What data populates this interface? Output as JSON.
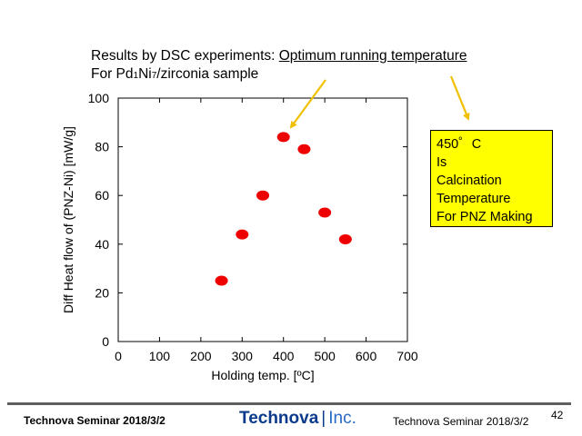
{
  "title": {
    "line1_prefix": "Results by DSC experiments: ",
    "line1_underlined": "Optimum running temperature",
    "line2_a": "For Pd",
    "line2_sub1": "1",
    "line2_b": "Ni",
    "line2_sub2": "7",
    "line2_c": "/zirconia sample"
  },
  "note": {
    "lines": [
      "450゜C",
      "Is",
      "Calcination",
      "Temperature",
      "For PNZ  Making"
    ],
    "color": "#ffff00"
  },
  "footer": {
    "left": "Technova Seminar 2018/3/2",
    "logo_brand": "Technova",
    "logo_sep": "|",
    "logo_inc": "Inc.",
    "right": "Technova Seminar 2018/3/2",
    "page": "42"
  },
  "chart_data": {
    "type": "scatter",
    "xlabel": "Holding temp. [ºC]",
    "ylabel": "Diff Heat flow of (PNZ-Ni)  [mW/g]",
    "xlim": [
      0,
      700
    ],
    "ylim": [
      0,
      100
    ],
    "xticks": [
      "0",
      "100",
      "200",
      "300",
      "400",
      "500",
      "600",
      "700"
    ],
    "yticks": [
      "0",
      "20",
      "40",
      "60",
      "80",
      "100"
    ],
    "grid": false,
    "marker_color": "#ee0000",
    "arrow_color": "#f0c000",
    "series": [
      {
        "x": [
          250,
          300,
          350,
          400,
          450,
          500,
          550
        ],
        "y": [
          25,
          44,
          60,
          84,
          79,
          53,
          42
        ]
      }
    ]
  }
}
